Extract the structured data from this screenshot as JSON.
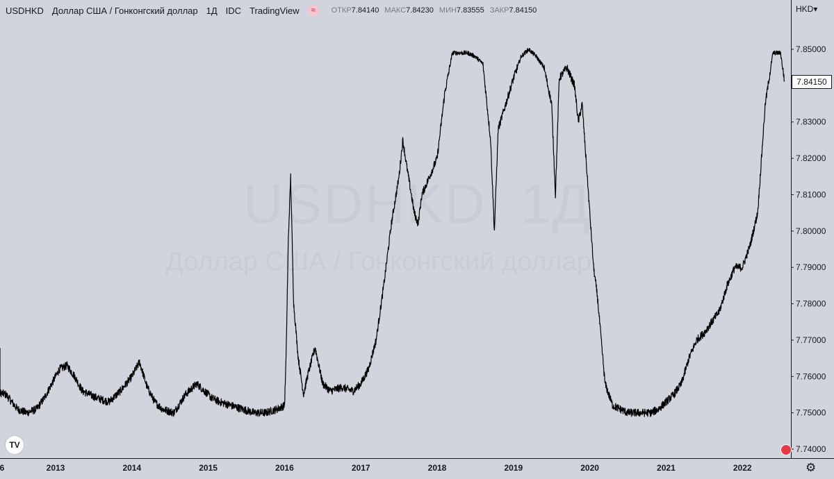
{
  "header": {
    "symbol": "USDHKD",
    "description": "Доллар США / Гонконгский доллар",
    "interval": "1Д",
    "exchange": "IDC",
    "provider": "TradingView",
    "open_label": "ОТКР",
    "open_value": "7.84140",
    "high_label": "МАКС",
    "high_value": "7.84230",
    "low_label": "МИН",
    "low_value": "7.83555",
    "close_label": "ЗАКР",
    "close_value": "7.84150"
  },
  "currency_button": "HKD",
  "last_price": "7.84150",
  "watermark": {
    "line1": "USDHKD, 1Д",
    "line2": "Доллар США / Гонконгский доллар"
  },
  "logo_text": "TV",
  "chart_data": {
    "type": "line",
    "title": "USDHKD",
    "xlabel": "",
    "ylabel": "",
    "ylim": [
      7.7375,
      7.8625
    ],
    "y_ticks": [
      "7.74000",
      "7.75000",
      "7.76000",
      "7.77000",
      "7.78000",
      "7.79000",
      "7.80000",
      "7.81000",
      "7.82000",
      "7.83000",
      "7.84000",
      "7.85000"
    ],
    "x_ticks": [
      "6",
      "2013",
      "2014",
      "2015",
      "2016",
      "2017",
      "2018",
      "2019",
      "2020",
      "2021",
      "2022"
    ],
    "grid": false,
    "series": [
      {
        "x": [
          2012.0,
          2012.05,
          2012.1,
          2012.2,
          2012.35,
          2012.5,
          2012.62,
          2012.75,
          2012.85,
          2012.95,
          2013.05,
          2013.15,
          2013.25,
          2013.35,
          2013.45,
          2013.55,
          2013.7,
          2013.85,
          2014.0,
          2014.1,
          2014.2,
          2014.3,
          2014.4,
          2014.55,
          2014.7,
          2014.85,
          2014.95,
          2015.05,
          2015.15,
          2015.3,
          2015.45,
          2015.6,
          2015.75,
          2015.9,
          2016.0,
          2016.02,
          2016.05,
          2016.08,
          2016.12,
          2016.18,
          2016.25,
          2016.3,
          2016.4,
          2016.5,
          2016.6,
          2016.75,
          2016.9,
          2017.0,
          2017.1,
          2017.2,
          2017.3,
          2017.4,
          2017.5,
          2017.55,
          2017.6,
          2017.7,
          2017.75,
          2017.8,
          2017.9,
          2018.0,
          2018.1,
          2018.2,
          2018.3,
          2018.4,
          2018.5,
          2018.6,
          2018.7,
          2018.75,
          2018.8,
          2018.9,
          2019.0,
          2019.1,
          2019.2,
          2019.3,
          2019.4,
          2019.5,
          2019.55,
          2019.6,
          2019.7,
          2019.8,
          2019.85,
          2019.9,
          2019.95,
          2020.0,
          2020.05,
          2020.1,
          2020.15,
          2020.2,
          2020.3,
          2020.4,
          2020.5,
          2020.6,
          2020.7,
          2020.8,
          2020.9,
          2021.0,
          2021.1,
          2021.2,
          2021.3,
          2021.4,
          2021.5,
          2021.6,
          2021.7,
          2021.8,
          2021.9,
          2022.0,
          2022.1,
          2022.2,
          2022.3,
          2022.4,
          2022.5,
          2022.55
        ],
        "values": [
          7.762,
          7.768,
          7.759,
          7.756,
          7.755,
          7.751,
          7.75,
          7.751,
          7.754,
          7.758,
          7.762,
          7.763,
          7.76,
          7.756,
          7.755,
          7.754,
          7.753,
          7.756,
          7.76,
          7.764,
          7.757,
          7.753,
          7.751,
          7.75,
          7.755,
          7.758,
          7.756,
          7.754,
          7.753,
          7.752,
          7.751,
          7.75,
          7.75,
          7.751,
          7.752,
          7.765,
          7.798,
          7.815,
          7.78,
          7.765,
          7.755,
          7.76,
          7.768,
          7.758,
          7.756,
          7.757,
          7.756,
          7.758,
          7.762,
          7.77,
          7.785,
          7.802,
          7.815,
          7.825,
          7.818,
          7.805,
          7.802,
          7.81,
          7.815,
          7.82,
          7.838,
          7.849,
          7.849,
          7.849,
          7.848,
          7.846,
          7.825,
          7.8,
          7.828,
          7.835,
          7.842,
          7.848,
          7.85,
          7.848,
          7.845,
          7.835,
          7.81,
          7.842,
          7.845,
          7.84,
          7.83,
          7.835,
          7.82,
          7.805,
          7.79,
          7.782,
          7.77,
          7.758,
          7.752,
          7.751,
          7.75,
          7.75,
          7.75,
          7.75,
          7.751,
          7.753,
          7.755,
          7.758,
          7.765,
          7.77,
          7.772,
          7.775,
          7.778,
          7.785,
          7.79,
          7.79,
          7.796,
          7.805,
          7.835,
          7.849,
          7.849,
          7.8415
        ]
      }
    ]
  }
}
